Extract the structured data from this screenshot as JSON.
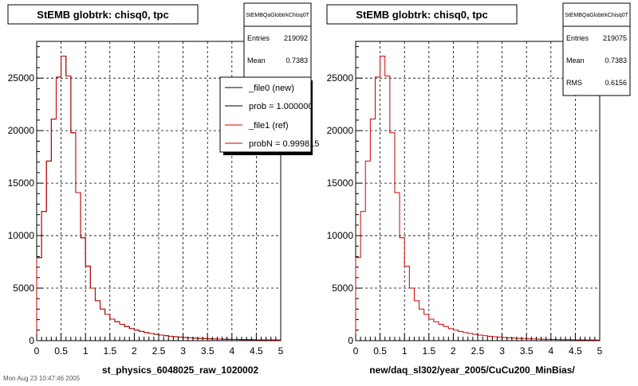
{
  "panels": [
    {
      "title": "StEMB globtrk: chisq0, tpc",
      "stats": {
        "name": "StEMBQaGlobtrkChisq0T",
        "entries_label": "Entries",
        "entries_value": "219092",
        "mean_label": "Mean",
        "mean_value": "0.7383",
        "rms_label": "",
        "rms_value": ""
      },
      "legend": [
        {
          "text": "_file0 (new)",
          "color": "#000000"
        },
        {
          "text": "prob = 1.000000",
          "color": "#000000"
        },
        {
          "text": "_file1 (ref)",
          "color": "#cc0000"
        },
        {
          "text": "probN = 0.999815",
          "color": "#cc0000"
        }
      ],
      "xlabel": "st_physics_6048025_raw_1020002"
    },
    {
      "title": "StEMB globtrk: chisq0, tpc",
      "stats": {
        "name": "StEMBQaGlobtrkChisq0T",
        "entries_label": "Entries",
        "entries_value": "219075",
        "mean_label": "Mean",
        "mean_value": "0.7383",
        "rms_label": "RMS",
        "rms_value": "0.6156"
      },
      "legend": [],
      "xlabel": "new/daq_sl302/year_2005/CuCu200_MinBias/"
    }
  ],
  "footer_text": "Mon Aug 23 10:47:46 2005",
  "chart_data": [
    {
      "type": "histogram",
      "title": "StEMB globtrk: chisq0, tpc",
      "xlabel": "st_physics_6048025_raw_1020002",
      "ylabel": "",
      "xlim": [
        0,
        5
      ],
      "ylim": [
        0,
        28500
      ],
      "grid": true,
      "legend_position": "top-right",
      "bin_width": 0.1,
      "x_ticks": [
        "0",
        "0.5",
        "1",
        "1.5",
        "2",
        "2.5",
        "3",
        "3.5",
        "4",
        "4.5",
        "5"
      ],
      "y_ticks": [
        "0",
        "5000",
        "10000",
        "15000",
        "20000",
        "25000"
      ],
      "series": [
        {
          "name": "_file0 (new)",
          "color": "#000000",
          "values": [
            7900,
            12300,
            17100,
            21100,
            25100,
            27100,
            25200,
            19800,
            14100,
            9800,
            7100,
            5000,
            3800,
            3000,
            2500,
            2050,
            1800,
            1550,
            1350,
            1150,
            1000,
            880,
            770,
            680,
            600,
            530,
            470,
            420,
            370,
            330,
            295,
            265,
            240,
            215,
            195,
            178,
            162,
            148,
            136,
            125,
            115,
            106,
            98,
            91,
            84,
            78,
            73,
            68,
            64,
            60
          ]
        },
        {
          "name": "_file1 (ref)",
          "color": "#cc0000",
          "values": [
            7900,
            12300,
            17100,
            21100,
            25100,
            27100,
            25200,
            19800,
            14100,
            9800,
            7100,
            5000,
            3800,
            3000,
            2500,
            2050,
            1800,
            1550,
            1350,
            1150,
            1000,
            880,
            770,
            680,
            600,
            530,
            470,
            420,
            370,
            330,
            295,
            265,
            240,
            215,
            195,
            178,
            162,
            148,
            136,
            125,
            115,
            106,
            98,
            91,
            84,
            78,
            73,
            68,
            64,
            60
          ]
        }
      ]
    },
    {
      "type": "histogram",
      "title": "StEMB globtrk: chisq0, tpc",
      "xlabel": "new/daq_sl302/year_2005/CuCu200_MinBias/",
      "ylabel": "",
      "xlim": [
        0,
        5
      ],
      "ylim": [
        0,
        28500
      ],
      "grid": true,
      "bin_width": 0.1,
      "x_ticks": [
        "0",
        "0.5",
        "1",
        "1.5",
        "2",
        "2.5",
        "3",
        "3.5",
        "4",
        "4.5",
        "5"
      ],
      "y_ticks": [
        "0",
        "5000",
        "10000",
        "15000",
        "20000",
        "25000"
      ],
      "series": [
        {
          "name": "",
          "color": "#cc0000",
          "values": [
            7900,
            12300,
            17100,
            21100,
            25100,
            27100,
            25200,
            19800,
            14100,
            9800,
            7100,
            5000,
            3800,
            3000,
            2500,
            2050,
            1800,
            1550,
            1350,
            1150,
            1000,
            880,
            770,
            680,
            600,
            530,
            470,
            420,
            370,
            330,
            295,
            265,
            240,
            215,
            195,
            178,
            162,
            148,
            136,
            125,
            115,
            106,
            98,
            91,
            84,
            78,
            73,
            68,
            64,
            60
          ]
        }
      ]
    }
  ]
}
